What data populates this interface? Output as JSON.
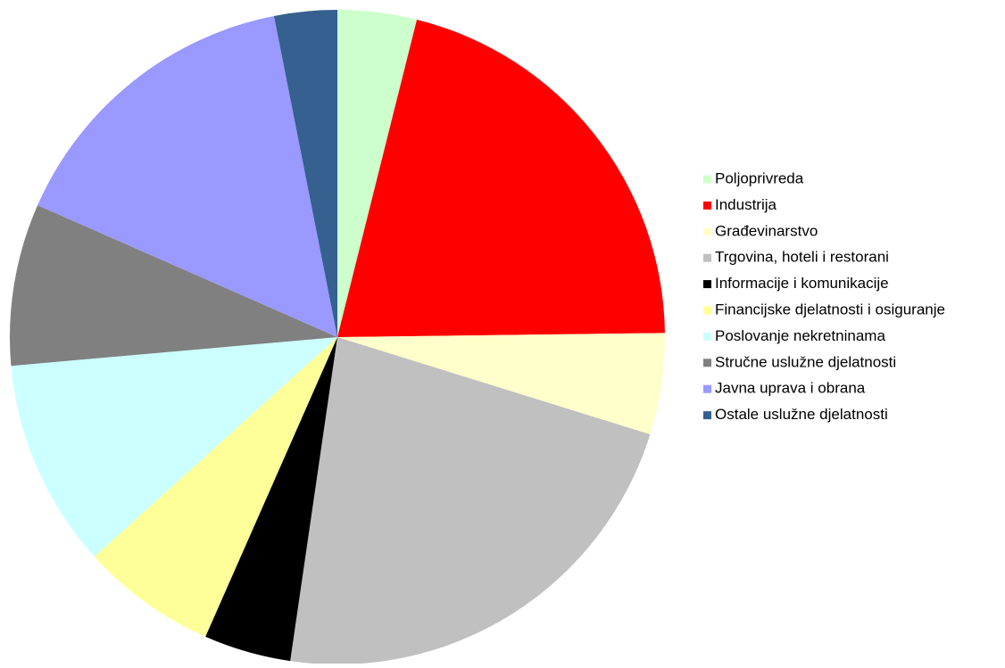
{
  "chart_data": {
    "type": "pie",
    "categories": [
      "Poljoprivreda",
      "Industrija",
      "Građevinarstvo",
      "Trgovina, hoteli i restorani",
      "Informacije i komunikacije",
      "Financijske djelatnosti i osiguranje",
      "Poslovanje nekretninama",
      "Stručne uslužne djelatnosti",
      "Javna uprava i obrana",
      "Ostale uslužne djelatnosti"
    ],
    "values": [
      3.9,
      20.9,
      5,
      22.5,
      4.3,
      6.7,
      10.3,
      8,
      15.3,
      3.1
    ],
    "colors": [
      "#ccffcc",
      "#ff0000",
      "#ffffcc",
      "#c0c0c0",
      "#000000",
      "#ffff99",
      "#ccffff",
      "#808080",
      "#9999ff",
      "#35608f"
    ],
    "legend": "right"
  }
}
